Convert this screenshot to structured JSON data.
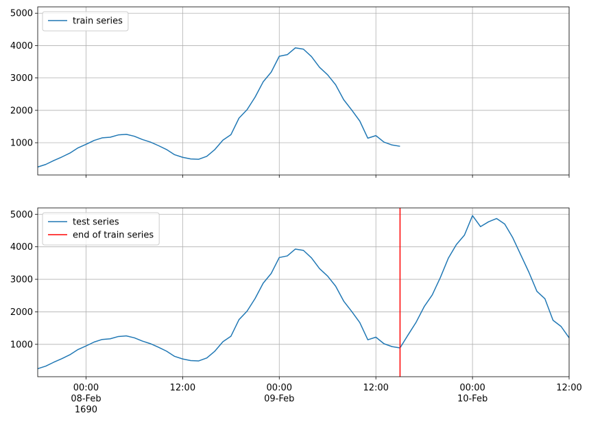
{
  "chart_data": [
    {
      "type": "line",
      "x": [
        "1690-02-07 18:00",
        "1690-02-07 19:00",
        "1690-02-07 20:00",
        "1690-02-07 21:00",
        "1690-02-07 22:00",
        "1690-02-07 23:00",
        "1690-02-08 00:00",
        "1690-02-08 01:00",
        "1690-02-08 02:00",
        "1690-02-08 03:00",
        "1690-02-08 04:00",
        "1690-02-08 05:00",
        "1690-02-08 06:00",
        "1690-02-08 07:00",
        "1690-02-08 08:00",
        "1690-02-08 09:00",
        "1690-02-08 10:00",
        "1690-02-08 11:00",
        "1690-02-08 12:00",
        "1690-02-08 13:00",
        "1690-02-08 14:00",
        "1690-02-08 15:00",
        "1690-02-08 16:00",
        "1690-02-08 17:00",
        "1690-02-08 18:00",
        "1690-02-08 19:00",
        "1690-02-08 20:00",
        "1690-02-08 21:00",
        "1690-02-08 22:00",
        "1690-02-08 23:00",
        "1690-02-09 00:00",
        "1690-02-09 01:00",
        "1690-02-09 02:00",
        "1690-02-09 03:00",
        "1690-02-09 04:00",
        "1690-02-09 05:00",
        "1690-02-09 06:00",
        "1690-02-09 07:00",
        "1690-02-09 08:00",
        "1690-02-09 09:00",
        "1690-02-09 10:00",
        "1690-02-09 11:00",
        "1690-02-09 12:00",
        "1690-02-09 13:00",
        "1690-02-09 14:00",
        "1690-02-09 15:00"
      ],
      "series": [
        {
          "name": "train series",
          "color": "#1f77b4",
          "values": [
            250,
            330,
            450,
            560,
            680,
            840,
            950,
            1070,
            1150,
            1170,
            1240,
            1260,
            1200,
            1100,
            1020,
            910,
            790,
            630,
            550,
            500,
            490,
            580,
            790,
            1080,
            1250,
            1760,
            2020,
            2410,
            2880,
            3180,
            3670,
            3720,
            3930,
            3890,
            3660,
            3330,
            3100,
            2790,
            2330,
            2010,
            1670,
            1140,
            1220,
            1020,
            930,
            890
          ]
        }
      ],
      "xlim": [
        "1690-02-07 18:00",
        "1690-02-10 12:00"
      ],
      "xticks": [
        "1690-02-08 00:00",
        "1690-02-08 12:00",
        "1690-02-09 00:00",
        "1690-02-09 12:00",
        "1690-02-10 00:00",
        "1690-02-10 12:00"
      ],
      "ylim": [
        4,
        5196
      ],
      "yticks": [
        1000,
        2000,
        3000,
        4000,
        5000
      ],
      "grid": true,
      "legend": "upper left"
    },
    {
      "type": "line",
      "x": [
        "1690-02-07 18:00",
        "1690-02-07 19:00",
        "1690-02-07 20:00",
        "1690-02-07 21:00",
        "1690-02-07 22:00",
        "1690-02-07 23:00",
        "1690-02-08 00:00",
        "1690-02-08 01:00",
        "1690-02-08 02:00",
        "1690-02-08 03:00",
        "1690-02-08 04:00",
        "1690-02-08 05:00",
        "1690-02-08 06:00",
        "1690-02-08 07:00",
        "1690-02-08 08:00",
        "1690-02-08 09:00",
        "1690-02-08 10:00",
        "1690-02-08 11:00",
        "1690-02-08 12:00",
        "1690-02-08 13:00",
        "1690-02-08 14:00",
        "1690-02-08 15:00",
        "1690-02-08 16:00",
        "1690-02-08 17:00",
        "1690-02-08 18:00",
        "1690-02-08 19:00",
        "1690-02-08 20:00",
        "1690-02-08 21:00",
        "1690-02-08 22:00",
        "1690-02-08 23:00",
        "1690-02-09 00:00",
        "1690-02-09 01:00",
        "1690-02-09 02:00",
        "1690-02-09 03:00",
        "1690-02-09 04:00",
        "1690-02-09 05:00",
        "1690-02-09 06:00",
        "1690-02-09 07:00",
        "1690-02-09 08:00",
        "1690-02-09 09:00",
        "1690-02-09 10:00",
        "1690-02-09 11:00",
        "1690-02-09 12:00",
        "1690-02-09 13:00",
        "1690-02-09 14:00",
        "1690-02-09 15:00",
        "1690-02-09 16:00",
        "1690-02-09 17:00",
        "1690-02-09 18:00",
        "1690-02-09 19:00",
        "1690-02-09 20:00",
        "1690-02-09 21:00",
        "1690-02-09 22:00",
        "1690-02-09 23:00",
        "1690-02-10 00:00",
        "1690-02-10 01:00",
        "1690-02-10 02:00",
        "1690-02-10 03:00",
        "1690-02-10 04:00",
        "1690-02-10 05:00",
        "1690-02-10 06:00",
        "1690-02-10 07:00",
        "1690-02-10 08:00",
        "1690-02-10 09:00",
        "1690-02-10 10:00",
        "1690-02-10 11:00",
        "1690-02-10 12:00"
      ],
      "series": [
        {
          "name": "test series",
          "color": "#1f77b4",
          "values": [
            250,
            330,
            450,
            560,
            680,
            840,
            950,
            1070,
            1150,
            1170,
            1240,
            1260,
            1200,
            1100,
            1020,
            910,
            790,
            630,
            550,
            500,
            490,
            580,
            790,
            1080,
            1250,
            1760,
            2020,
            2410,
            2880,
            3180,
            3670,
            3720,
            3930,
            3890,
            3660,
            3330,
            3100,
            2790,
            2330,
            2010,
            1670,
            1140,
            1220,
            1020,
            930,
            890,
            1290,
            1680,
            2160,
            2520,
            3050,
            3650,
            4070,
            4360,
            4960,
            4620,
            4770,
            4870,
            4700,
            4280,
            3750,
            3220,
            2630,
            2400,
            1740,
            1550,
            1200
          ]
        }
      ],
      "vline": {
        "name": "end of train series",
        "color": "#ff0000",
        "x": "1690-02-09 15:00"
      },
      "xlim": [
        "1690-02-07 18:00",
        "1690-02-10 12:00"
      ],
      "xticks": [
        {
          "value": "1690-02-08 00:00",
          "label": "00:00\n08-Feb\n1690"
        },
        {
          "value": "1690-02-08 12:00",
          "label": "12:00"
        },
        {
          "value": "1690-02-09 00:00",
          "label": "00:00\n09-Feb"
        },
        {
          "value": "1690-02-09 12:00",
          "label": "12:00"
        },
        {
          "value": "1690-02-10 00:00",
          "label": "00:00\n10-Feb"
        },
        {
          "value": "1690-02-10 12:00",
          "label": "12:00"
        }
      ],
      "ylim": [
        4,
        5196
      ],
      "yticks": [
        1000,
        2000,
        3000,
        4000,
        5000
      ],
      "grid": true,
      "legend": "upper left"
    }
  ]
}
